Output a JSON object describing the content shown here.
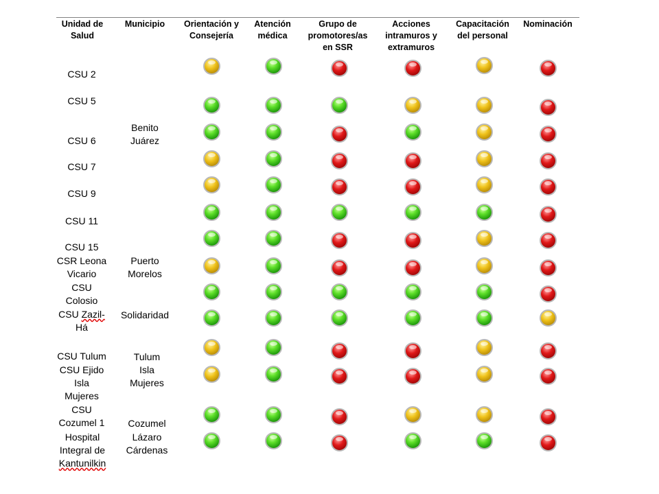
{
  "headers": [
    "Unidad de\nSalud",
    "Municipio",
    "Orientación y\nConsejería",
    "Atención\nmédica",
    "Grupo de\npromotores/as\nen SSR",
    "Acciones\nintramuros y\nextramuros",
    "Capacitación\ndel personal",
    "Nominación"
  ],
  "units": [
    {
      "text": "CSU 2",
      "spell_error": ""
    },
    {
      "text": "CSU 5",
      "spell_error": ""
    },
    {
      "text": "CSU 6",
      "spell_error": ""
    },
    {
      "text": "CSU 7",
      "spell_error": ""
    },
    {
      "text": "CSU 9",
      "spell_error": ""
    },
    {
      "text": "CSU 11",
      "spell_error": ""
    },
    {
      "text": "CSU 15",
      "spell_error": ""
    },
    {
      "text": "CSR Leona\nVicario",
      "spell_error": ""
    },
    {
      "text": "CSU\nColosio",
      "spell_error": ""
    },
    {
      "text": "CSU ",
      "spell_error": "Zazil-",
      "text_after": "\nHá"
    },
    {
      "text": "CSU Tulum",
      "spell_error": ""
    },
    {
      "text": "CSU Ejido\nIsla\nMujeres",
      "spell_error": ""
    },
    {
      "text": "CSU\nCozumel 1",
      "spell_error": ""
    },
    {
      "text": "Hospital\nIntegral de\n",
      "spell_error": "Kantunilkin"
    }
  ],
  "municipios": [
    "Benito\nJuárez",
    "Puerto\nMorelos",
    "Solidaridad",
    "Tulum",
    "Isla\nMujeres",
    "Cozumel",
    "Lázaro\nCárdenas"
  ],
  "status_colors": {
    "green": "#2fbf16",
    "yellow": "#e4b514",
    "red": "#c40d0d"
  },
  "indicator_rows": [
    [
      "yellow",
      "green",
      "red",
      "red",
      "yellow",
      "red"
    ],
    [
      "green",
      "green",
      "green",
      "yellow",
      "yellow",
      "red"
    ],
    [
      "green",
      "green",
      "red",
      "green",
      "yellow",
      "red"
    ],
    [
      "yellow",
      "green",
      "red",
      "red",
      "yellow",
      "red"
    ],
    [
      "yellow",
      "green",
      "red",
      "red",
      "yellow",
      "red"
    ],
    [
      "green",
      "green",
      "green",
      "green",
      "green",
      "red"
    ],
    [
      "green",
      "green",
      "red",
      "red",
      "yellow",
      "red"
    ],
    [
      "yellow",
      "green",
      "red",
      "red",
      "yellow",
      "red"
    ],
    [
      "green",
      "green",
      "green",
      "green",
      "green",
      "red"
    ],
    [
      "green",
      "green",
      "green",
      "green",
      "green",
      "yellow"
    ],
    [
      "yellow",
      "green",
      "red",
      "red",
      "yellow",
      "red"
    ],
    [
      "yellow",
      "green",
      "red",
      "red",
      "yellow",
      "red"
    ],
    [
      "green",
      "green",
      "red",
      "yellow",
      "yellow",
      "red"
    ],
    [
      "green",
      "green",
      "red",
      "green",
      "green",
      "red"
    ]
  ]
}
